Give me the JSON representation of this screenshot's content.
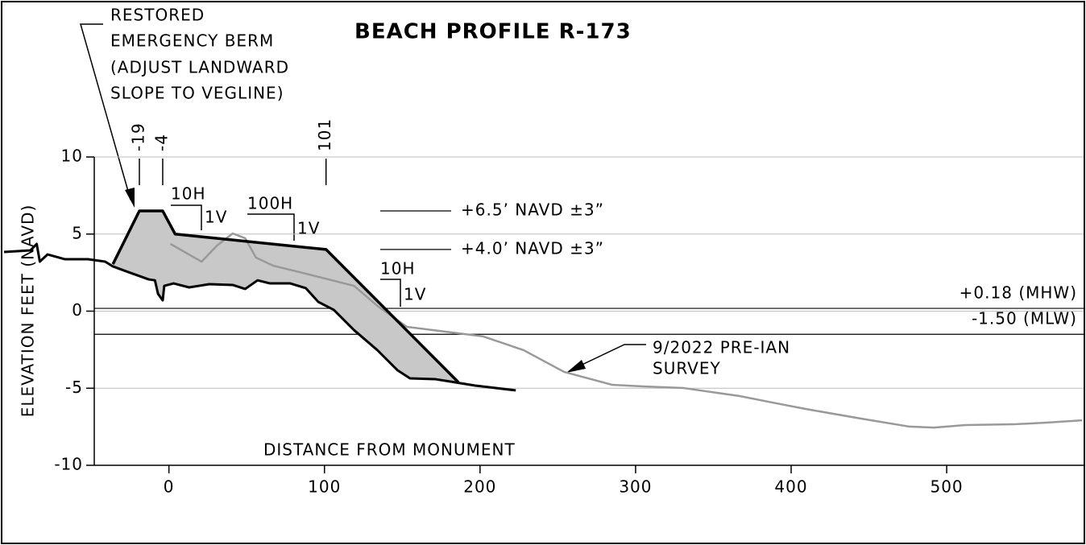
{
  "chart_data": {
    "type": "line",
    "title": "BEACH PROFILE R-173",
    "xlabel": "DISTANCE FROM MONUMENT",
    "ylabel": "ELEVATION FEET (NAVD)",
    "xlim": [
      -48,
      588
    ],
    "ylim": [
      -10,
      10
    ],
    "xticks": [
      0,
      100,
      200,
      300,
      400,
      500
    ],
    "yticks": [
      10,
      5,
      0,
      -5,
      -10
    ],
    "grid": true,
    "series": [
      {
        "color": "#999999",
        "x": [
          1,
          21,
          31,
          41,
          49,
          56,
          67,
          88,
          119,
          134,
          153,
          202,
          228,
          254,
          285,
          305,
          331,
          367,
          388,
          409,
          445,
          476,
          492,
          512,
          543,
          564,
          587
        ],
        "values": [
          4.36,
          3.21,
          4.26,
          5.04,
          4.73,
          3.47,
          2.95,
          2.43,
          1.64,
          0.34,
          -1.02,
          -1.64,
          -2.53,
          -3.94,
          -4.78,
          -4.88,
          -4.99,
          -5.51,
          -5.93,
          -6.34,
          -6.97,
          -7.49,
          -7.55,
          -7.39,
          -7.34,
          -7.23,
          -7.08
        ]
      },
      {
        "color": "#000000",
        "x": [
          -106,
          -89,
          -85,
          -83,
          -78,
          -67,
          -52,
          -41,
          -36,
          -26,
          -13,
          -9,
          -7,
          -4,
          -3,
          3,
          13,
          26,
          41,
          49,
          57,
          65,
          78,
          88,
          96,
          106,
          119,
          134,
          147,
          155,
          171,
          181,
          197,
          223
        ],
        "values": [
          3.84,
          3.94,
          4.36,
          3.21,
          3.68,
          3.37,
          3.37,
          3.21,
          2.9,
          2.53,
          2.06,
          2.0,
          1.12,
          0.7,
          1.64,
          1.8,
          1.54,
          1.75,
          1.7,
          1.44,
          2.0,
          1.8,
          1.8,
          1.49,
          0.6,
          0.08,
          -1.23,
          -2.53,
          -3.84,
          -4.36,
          -4.41,
          -4.57,
          -4.83,
          -5.14
        ]
      },
      {
        "color": "#000000",
        "fill": "#c8c8c8",
        "x": [
          -36,
          -19,
          -4,
          4,
          101,
          186
        ],
        "values": [
          3.05,
          6.5,
          6.5,
          5.0,
          4.0,
          -4.6
        ]
      }
    ],
    "reference_lines": [
      {
        "value": 0.18,
        "label": "+0.18 (MHW)"
      },
      {
        "value": -1.5,
        "label": "-1.50 (MLW)"
      }
    ],
    "design_elevations": [
      {
        "value": 6.5,
        "label": "+6.5’ NAVD ±3”"
      },
      {
        "value": 4.0,
        "label": "+4.0’ NAVD ±3”"
      }
    ],
    "stations": [
      -19,
      -4,
      101
    ],
    "slopes": [
      {
        "h": "10H",
        "v": "1V"
      },
      {
        "h": "100H",
        "v": "1V"
      },
      {
        "h": "10H",
        "v": "1V"
      }
    ],
    "berm_note": [
      "RESTORED",
      "EMERGENCY BERM",
      "(ADJUST LANDWARD",
      "SLOPE TO VEGLINE)"
    ],
    "survey_note": [
      "9/2022 PRE-IAN",
      "SURVEY"
    ]
  }
}
